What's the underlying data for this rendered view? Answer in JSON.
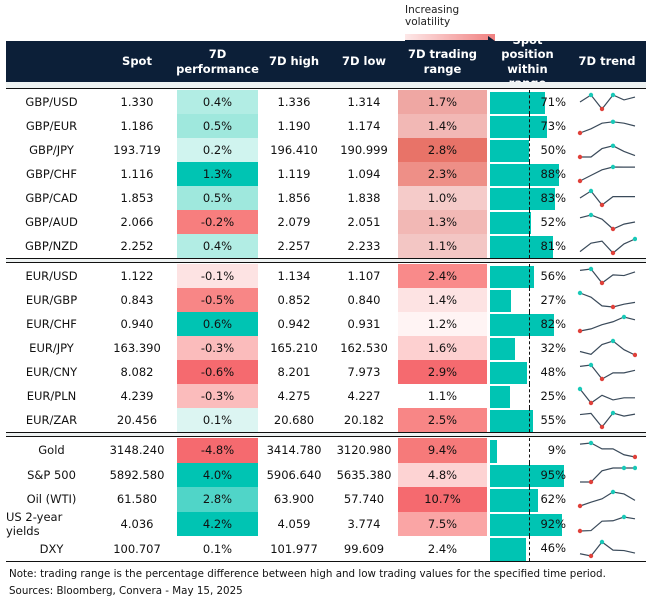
{
  "legend": {
    "label": "Increasing volatility"
  },
  "header": {
    "spot": "Spot",
    "performance": "7D performance",
    "high": "7D high",
    "low": "7D low",
    "range": "7D trading range",
    "position": "Spot position within range",
    "trend": "7D trend"
  },
  "colors": {
    "header_bg": "#0c1f38",
    "bar": "#00c4b3",
    "trend_line": "#3a4a5a",
    "max_marker": "#19c9b8",
    "min_marker": "#e0413a"
  },
  "chart_data": {
    "type": "table",
    "sections": [
      {
        "rows": [
          {
            "name": "GBP/USD",
            "spot": "1.330",
            "perf": "0.4%",
            "perf_color": "#b2ede4",
            "high": "1.336",
            "low": "1.314",
            "range": "1.7%",
            "range_color": "#efa7a3",
            "position": 71,
            "position_label": "71%",
            "trend": [
              5,
              10,
              0,
              10,
              6.5,
              8.5
            ],
            "max_idx": [
              1,
              3
            ],
            "min_idx": [
              2
            ]
          },
          {
            "name": "GBP/EUR",
            "spot": "1.186",
            "perf": "0.5%",
            "perf_color": "#9fe8dd",
            "high": "1.190",
            "low": "1.174",
            "range": "1.4%",
            "range_color": "#f2b8b5",
            "position": 73,
            "position_label": "73%",
            "trend": [
              0,
              3,
              7,
              8,
              7,
              5
            ],
            "max_idx": [
              3
            ],
            "min_idx": [
              0
            ]
          },
          {
            "name": "GBP/JPY",
            "spot": "193.719",
            "perf": "0.2%",
            "perf_color": "#d0f4ef",
            "high": "196.410",
            "low": "190.999",
            "range": "2.8%",
            "range_color": "#e87368",
            "position": 50,
            "position_label": "50%",
            "trend": [
              0,
              0,
              6,
              8,
              4,
              1
            ],
            "max_idx": [
              3
            ],
            "min_idx": [
              0
            ]
          },
          {
            "name": "GBP/CHF",
            "spot": "1.116",
            "perf": "1.3%",
            "perf_color": "#00c4b3",
            "high": "1.119",
            "low": "1.094",
            "range": "2.3%",
            "range_color": "#ee8f87",
            "position": 88,
            "position_label": "88%",
            "trend": [
              0,
              4,
              8,
              10,
              9.9,
              9.9
            ],
            "max_idx": [
              3
            ],
            "min_idx": [
              0
            ]
          },
          {
            "name": "GBP/CAD",
            "spot": "1.853",
            "perf": "0.5%",
            "perf_color": "#9fe8dd",
            "high": "1.856",
            "low": "1.838",
            "range": "1.0%",
            "range_color": "#f5cbc9",
            "position": 83,
            "position_label": "83%",
            "trend": [
              5,
              10,
              0,
              6,
              6,
              6
            ],
            "max_idx": [
              1
            ],
            "min_idx": [
              2
            ]
          },
          {
            "name": "GBP/AUD",
            "spot": "2.066",
            "perf": "-0.2%",
            "perf_color": "#f77e7e",
            "high": "2.079",
            "low": "2.051",
            "range": "1.3%",
            "range_color": "#f2b8b5",
            "position": 52,
            "position_label": "52%",
            "trend": [
              8,
              10,
              7,
              0,
              3.5,
              5
            ],
            "max_idx": [
              1
            ],
            "min_idx": [
              3
            ]
          },
          {
            "name": "GBP/NZD",
            "spot": "2.252",
            "perf": "0.4%",
            "perf_color": "#b2ede4",
            "high": "2.257",
            "low": "2.233",
            "range": "1.1%",
            "range_color": "#f3c6c4",
            "position": 81,
            "position_label": "81%",
            "trend": [
              1,
              7,
              8.5,
              0,
              6.5,
              10
            ],
            "max_idx": [
              5
            ],
            "min_idx": [
              3
            ]
          }
        ]
      },
      {
        "rows": [
          {
            "name": "EUR/USD",
            "spot": "1.122",
            "perf": "-0.1%",
            "perf_color": "#fde3e3",
            "high": "1.134",
            "low": "1.107",
            "range": "2.4%",
            "range_color": "#f98a8a",
            "position": 56,
            "position_label": "56%",
            "trend": [
              9,
              10,
              0,
              5.8,
              5.3,
              7.9
            ],
            "max_idx": [
              1
            ],
            "min_idx": [
              2
            ]
          },
          {
            "name": "EUR/GBP",
            "spot": "0.843",
            "perf": "-0.5%",
            "perf_color": "#f88686",
            "high": "0.852",
            "low": "0.840",
            "range": "1.4%",
            "range_color": "#fde3e3",
            "position": 27,
            "position_label": "27%",
            "trend": [
              10,
              7,
              0.8,
              0,
              2,
              3.3
            ],
            "max_idx": [
              0
            ],
            "min_idx": [
              3
            ]
          },
          {
            "name": "EUR/CHF",
            "spot": "0.940",
            "perf": "0.6%",
            "perf_color": "#00c4b3",
            "high": "0.942",
            "low": "0.931",
            "range": "1.2%",
            "range_color": "#fff4f4",
            "position": 82,
            "position_label": "82%",
            "trend": [
              0,
              1.5,
              4.5,
              6.6,
              10,
              8
            ],
            "max_idx": [
              4
            ],
            "min_idx": [
              0
            ]
          },
          {
            "name": "EUR/JPY",
            "spot": "163.390",
            "perf": "-0.3%",
            "perf_color": "#fbbcbc",
            "high": "165.210",
            "low": "162.530",
            "range": "1.6%",
            "range_color": "#fdd0d0",
            "position": 32,
            "position_label": "32%",
            "trend": [
              2.5,
              0.5,
              7.5,
              10,
              3.8,
              0
            ],
            "max_idx": [
              3
            ],
            "min_idx": [
              5
            ]
          },
          {
            "name": "EUR/CNY",
            "spot": "8.082",
            "perf": "-0.6%",
            "perf_color": "#f56a6f",
            "high": "8.201",
            "low": "7.973",
            "range": "2.9%",
            "range_color": "#f56a6f",
            "position": 48,
            "position_label": "48%",
            "trend": [
              9,
              10,
              0,
              4.4,
              4.4,
              6.2
            ],
            "max_idx": [
              1
            ],
            "min_idx": [
              2
            ]
          },
          {
            "name": "EUR/PLN",
            "spot": "4.239",
            "perf": "-0.3%",
            "perf_color": "#fbbcbc",
            "high": "4.275",
            "low": "4.227",
            "range": "1.1%",
            "range_color": "#ffffff",
            "position": 25,
            "position_label": "25%",
            "trend": [
              10,
              0,
              5.5,
              2.2,
              3.7,
              3.7
            ],
            "max_idx": [
              0
            ],
            "min_idx": [
              1
            ]
          },
          {
            "name": "EUR/ZAR",
            "spot": "20.456",
            "perf": "0.1%",
            "perf_color": "#dcf5f2",
            "high": "20.680",
            "low": "20.182",
            "range": "2.5%",
            "range_color": "#f88686",
            "position": 55,
            "position_label": "55%",
            "trend": [
              8.9,
              9.7,
              0,
              10,
              7.8,
              9.2
            ],
            "max_idx": [
              3
            ],
            "min_idx": [
              2
            ]
          }
        ]
      },
      {
        "rows": [
          {
            "name": "Gold",
            "spot": "3148.240",
            "perf": "-4.8%",
            "perf_color": "#f56a6f",
            "high": "3414.780",
            "low": "3120.980",
            "range": "9.4%",
            "range_color": "#f67a7a",
            "position": 9,
            "position_label": "9%",
            "trend": [
              9.2,
              10,
              5.8,
              5.8,
              1.6,
              0
            ],
            "max_idx": [
              1
            ],
            "min_idx": [
              5
            ]
          },
          {
            "name": "S&P 500",
            "spot": "5892.580",
            "perf": "4.0%",
            "perf_color": "#00c4b3",
            "high": "5906.640",
            "low": "5635.380",
            "range": "4.8%",
            "range_color": "#fdd3d3",
            "position": 95,
            "position_label": "95%",
            "trend": [
              0,
              0,
              8,
              10,
              10,
              10
            ],
            "max_idx": [
              4,
              5
            ],
            "min_idx": [
              1
            ]
          },
          {
            "name": "Oil (WTI)",
            "spot": "61.580",
            "perf": "2.8%",
            "perf_color": "#50d5c8",
            "high": "63.900",
            "low": "57.740",
            "range": "10.7%",
            "range_color": "#f56a6f",
            "position": 62,
            "position_label": "62%",
            "trend": [
              0,
              2.7,
              5.1,
              10,
              8.6,
              4
            ],
            "max_idx": [
              3
            ],
            "min_idx": [
              0
            ]
          },
          {
            "name": "US 2-year yields",
            "spot": "4.036",
            "perf": "4.2%",
            "perf_color": "#00c4b3",
            "high": "4.059",
            "low": "3.774",
            "range": "7.5%",
            "range_color": "#faa5a5",
            "position": 92,
            "position_label": "92%",
            "trend": [
              0,
              0.3,
              7,
              7.3,
              10,
              8.7
            ],
            "max_idx": [
              4
            ],
            "min_idx": [
              0
            ]
          },
          {
            "name": "DXY",
            "spot": "100.707",
            "perf": "0.1%",
            "perf_color": "#ffffff",
            "high": "101.977",
            "low": "99.609",
            "range": "2.4%",
            "range_color": "#ffffff",
            "position": 46,
            "position_label": "46%",
            "trend": [
              1.6,
              0,
              10,
              4.2,
              3.9,
              2.1
            ],
            "max_idx": [
              2
            ],
            "min_idx": [
              1
            ]
          }
        ]
      }
    ]
  },
  "notes": {
    "note": "Note: trading range is the percentage difference between high and low trading values for the specified time period.",
    "sources": "Sources: Bloomberg, Convera - May 15, 2025"
  }
}
